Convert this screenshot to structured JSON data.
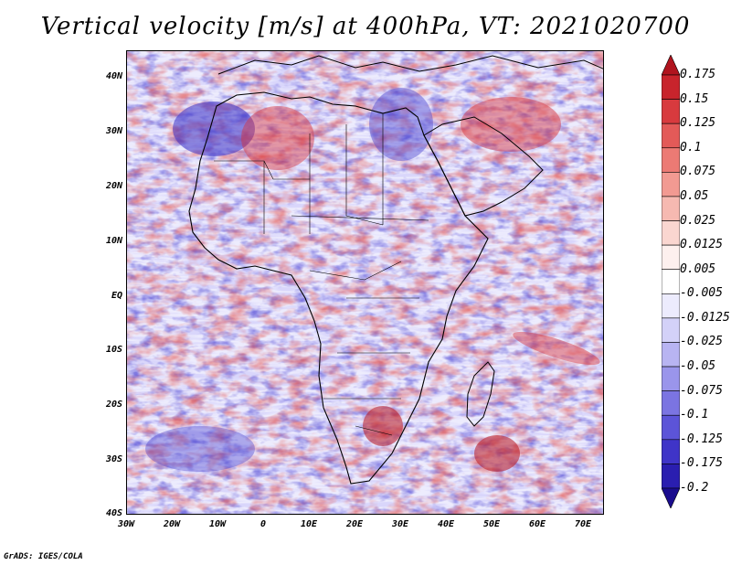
{
  "title": "Vertical velocity [m/s] at 400hPa, VT: 2021020700",
  "footer": "GrADS: IGES/COLA",
  "axes": {
    "lat_labels": [
      "40N",
      "30N",
      "20N",
      "10N",
      "EQ",
      "10S",
      "20S",
      "30S",
      "40S"
    ],
    "lon_labels": [
      "30W",
      "20W",
      "10W",
      "0",
      "10E",
      "20E",
      "30E",
      "40E",
      "50E",
      "60E",
      "70E"
    ]
  },
  "colorbar": {
    "labels": [
      "0.175",
      "0.15",
      "0.125",
      "0.1",
      "0.075",
      "0.05",
      "0.025",
      "0.0125",
      "0.005",
      "-0.005",
      "-0.0125",
      "-0.025",
      "-0.05",
      "-0.075",
      "-0.1",
      "-0.125",
      "-0.175",
      "-0.2"
    ],
    "colors": [
      "#b0141e",
      "#c8242c",
      "#d83a3e",
      "#e35a58",
      "#ec7a74",
      "#f29a92",
      "#f6b9b1",
      "#fad6d0",
      "#fdf0ee",
      "#ffffff",
      "#ecebfd",
      "#d3d1f8",
      "#b8b4f2",
      "#9a95eb",
      "#7b74e2",
      "#5c54d8",
      "#3f34c8",
      "#2a1eb0",
      "#1a0c8e"
    ]
  }
}
